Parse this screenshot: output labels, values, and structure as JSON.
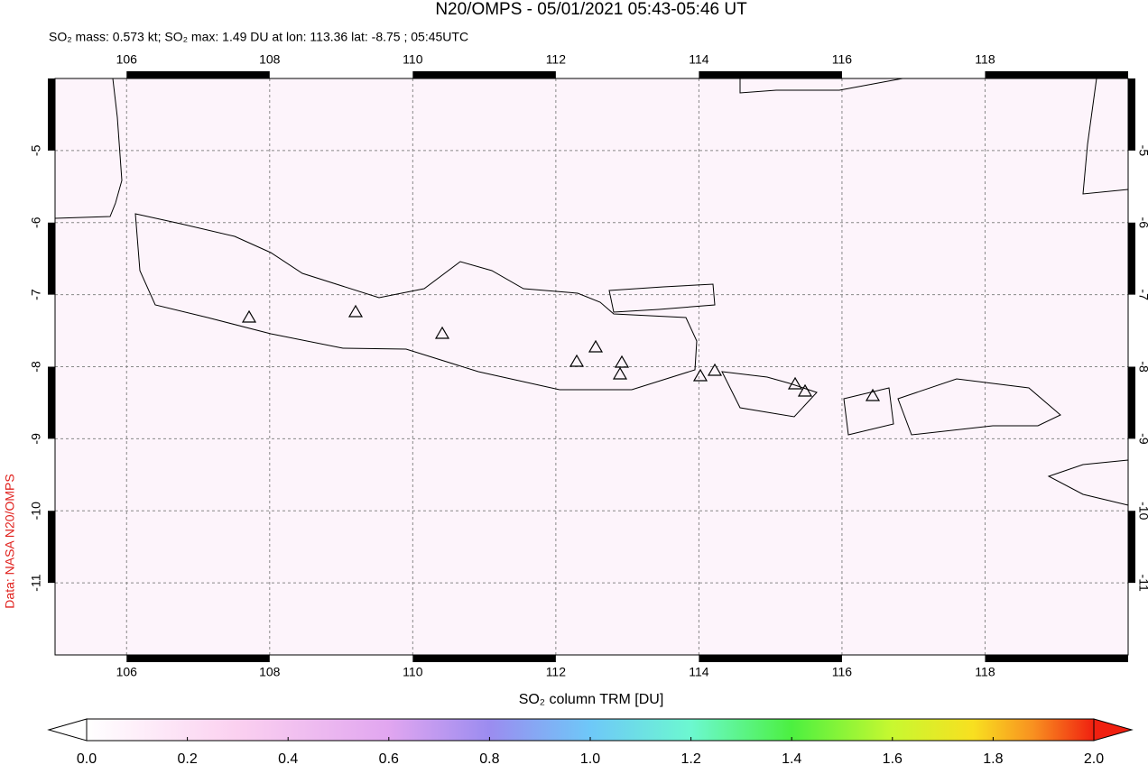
{
  "chart_data": {
    "type": "map",
    "title": "N20/OMPS - 05/01/2021 05:43-05:46 UT",
    "subtitle": "SO₂ mass: 0.573 kt; SO₂ max: 1.49 DU at lon: 113.36 lat: -8.75 ; 05:45UTC",
    "credit": "Data: NASA N20/OMPS",
    "colorbar_label": "SO₂ column TRM [DU]",
    "xlim": [
      105,
      120
    ],
    "ylim": [
      -12,
      -4
    ],
    "xticks": [
      106,
      108,
      110,
      112,
      114,
      116,
      118
    ],
    "yticks": [
      -5,
      -6,
      -7,
      -8,
      -9,
      -10,
      -11
    ],
    "grid": true,
    "colorbar_lim": [
      0,
      2
    ],
    "colorbar_ticks": [
      {
        "value": 0,
        "label": "0.0"
      },
      {
        "value": 0.2,
        "label": "0.2"
      },
      {
        "value": 0.4,
        "label": "0.4"
      },
      {
        "value": 0.6,
        "label": "0.6"
      },
      {
        "value": 0.8,
        "label": "0.8"
      },
      {
        "value": 1,
        "label": "1.0"
      },
      {
        "value": 1.2,
        "label": "1.2"
      },
      {
        "value": 1.4,
        "label": "1.4"
      },
      {
        "value": 1.6,
        "label": "1.6"
      },
      {
        "value": 1.8,
        "label": "1.8"
      },
      {
        "value": 2,
        "label": "2.0"
      }
    ]
  }
}
